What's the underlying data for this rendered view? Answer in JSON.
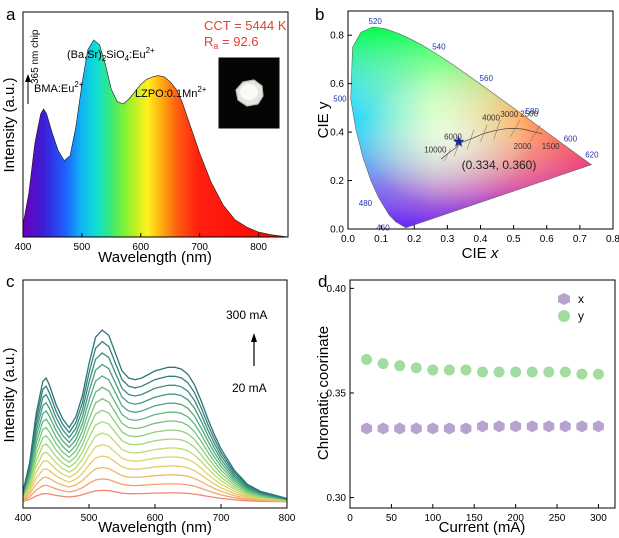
{
  "panels": {
    "a": {
      "letter": "a",
      "chart_data": {
        "type": "line",
        "title": "",
        "xlabel": "Wavelength (nm)",
        "ylabel": "Intensity (a.u.)",
        "xlim": [
          400,
          850
        ],
        "x_ticks": [
          "400",
          "500",
          "600",
          "700",
          "800"
        ],
        "series": [
          {
            "name": "Emission spectrum",
            "x": [
              400,
              410,
              420,
              430,
              435,
              440,
              450,
              460,
              470,
              480,
              490,
              500,
              510,
              520,
              530,
              540,
              550,
              560,
              570,
              580,
              590,
              600,
              610,
              620,
              630,
              640,
              650,
              660,
              670,
              680,
              690,
              700,
              720,
              740,
              760,
              780,
              800,
              820,
              850
            ],
            "values": [
              0.05,
              0.18,
              0.38,
              0.5,
              0.52,
              0.5,
              0.42,
              0.35,
              0.31,
              0.33,
              0.45,
              0.62,
              0.76,
              0.8,
              0.78,
              0.7,
              0.6,
              0.55,
              0.54,
              0.56,
              0.59,
              0.62,
              0.64,
              0.65,
              0.655,
              0.65,
              0.63,
              0.6,
              0.55,
              0.48,
              0.41,
              0.34,
              0.22,
              0.13,
              0.07,
              0.04,
              0.02,
              0.01,
              0.0
            ]
          }
        ],
        "annotations": {
          "chip": "365 nm chip",
          "bma": "BMA:Eu",
          "bma_sup": "2+",
          "basr_pre": "(Ba,Sr)",
          "basr_sub": "2",
          "basr_post": "SiO",
          "basr_sub2": "4",
          "basr_eu": ":Eu",
          "basr_sup": "2+",
          "lzpo": "LZPO:0.1Mn",
          "lzpo_sup": "2+",
          "cct": "CCT = 5444 K",
          "ra_r": "R",
          "ra_sub": "a",
          "ra_val": " = 92.6"
        }
      }
    },
    "b": {
      "letter": "b",
      "chart_data": {
        "type": "scatter",
        "title": "",
        "xlabel_pre": "CIE ",
        "xlabel_var": "x",
        "ylabel": "CIE y",
        "xlim": [
          0.0,
          0.8
        ],
        "ylim": [
          0.0,
          0.9
        ],
        "x_ticks": [
          "0.0",
          "0.1",
          "0.2",
          "0.3",
          "0.4",
          "0.5",
          "0.6",
          "0.7",
          "0.8"
        ],
        "y_ticks": [
          "0.0",
          "0.2",
          "0.4",
          "0.6",
          "0.8"
        ],
        "series": [
          {
            "name": "LED",
            "x": [
              0.334
            ],
            "values": [
              0.36
            ]
          }
        ],
        "point_label": "(0.334, 0.360)",
        "wavelength_labels": [
          {
            "text": "520",
            "x": 0.074,
            "y": 0.834
          },
          {
            "text": "540",
            "x": 0.23,
            "y": 0.754
          },
          {
            "text": "560",
            "x": 0.373,
            "y": 0.624
          },
          {
            "text": "580",
            "x": 0.512,
            "y": 0.487
          },
          {
            "text": "600",
            "x": 0.627,
            "y": 0.373
          },
          {
            "text": "620",
            "x": 0.692,
            "y": 0.308
          },
          {
            "text": "500",
            "x": 0.008,
            "y": 0.538
          },
          {
            "text": "480",
            "x": 0.091,
            "y": 0.133
          },
          {
            "text": "460",
            "x": 0.144,
            "y": 0.03
          }
        ],
        "cct_labels": [
          "10000",
          "6000",
          "4000",
          "3000",
          "2500",
          "2000",
          "1500"
        ],
        "gamut_locus": [
          [
            0.1741,
            0.005
          ],
          [
            0.144,
            0.0297
          ],
          [
            0.1241,
            0.0578
          ],
          [
            0.0913,
            0.1327
          ],
          [
            0.0687,
            0.2007
          ],
          [
            0.0454,
            0.295
          ],
          [
            0.0235,
            0.4127
          ],
          [
            0.0082,
            0.5384
          ],
          [
            0.0139,
            0.7502
          ],
          [
            0.0389,
            0.812
          ],
          [
            0.0743,
            0.8338
          ],
          [
            0.1142,
            0.8262
          ],
          [
            0.1547,
            0.8059
          ],
          [
            0.1929,
            0.7816
          ],
          [
            0.2296,
            0.7543
          ],
          [
            0.2658,
            0.7243
          ],
          [
            0.3016,
            0.6923
          ],
          [
            0.3373,
            0.6589
          ],
          [
            0.3731,
            0.6245
          ],
          [
            0.4087,
            0.5896
          ],
          [
            0.4441,
            0.5547
          ],
          [
            0.4788,
            0.5202
          ],
          [
            0.5125,
            0.4866
          ],
          [
            0.5448,
            0.4544
          ],
          [
            0.5752,
            0.4242
          ],
          [
            0.6029,
            0.3965
          ],
          [
            0.627,
            0.3725
          ],
          [
            0.6482,
            0.3514
          ],
          [
            0.6658,
            0.334
          ],
          [
            0.6801,
            0.3197
          ],
          [
            0.7347,
            0.2653
          ]
        ],
        "planckian_locus": [
          [
            0.281,
            0.288
          ],
          [
            0.3,
            0.31
          ],
          [
            0.322,
            0.332
          ],
          [
            0.346,
            0.359
          ],
          [
            0.38,
            0.377
          ],
          [
            0.409,
            0.394
          ],
          [
            0.437,
            0.404
          ],
          [
            0.459,
            0.41
          ],
          [
            0.477,
            0.414
          ],
          [
            0.505,
            0.415
          ],
          [
            0.527,
            0.413
          ],
          [
            0.586,
            0.393
          ]
        ]
      }
    },
    "c": {
      "letter": "c",
      "chart_data": {
        "type": "line",
        "title": "",
        "xlabel": "Wavelength (nm)",
        "ylabel": "Intensity (a.u.)",
        "xlim": [
          400,
          800
        ],
        "x_ticks": [
          "400",
          "500",
          "600",
          "700",
          "800"
        ],
        "current_high": "300 mA",
        "current_low": "20 mA",
        "currents_mA": [
          20,
          40,
          60,
          80,
          100,
          120,
          140,
          160,
          180,
          200,
          220,
          240,
          260,
          280,
          300
        ],
        "curve_colors": [
          "#f08872",
          "#f3a06e",
          "#f2b56b",
          "#e8c86a",
          "#d6d46c",
          "#bfd970",
          "#a5d675",
          "#8dcf7a",
          "#77c47d",
          "#63b77f",
          "#52a980",
          "#449b80",
          "#3a8d7f",
          "#327f7c",
          "#2c7478"
        ],
        "base_shape_x": [
          400,
          410,
          420,
          430,
          435,
          440,
          450,
          460,
          470,
          480,
          490,
          500,
          510,
          520,
          530,
          540,
          550,
          560,
          570,
          580,
          590,
          600,
          610,
          620,
          630,
          640,
          650,
          660,
          670,
          680,
          690,
          700,
          720,
          740,
          760,
          780,
          800
        ],
        "base_shape_y": [
          0.06,
          0.22,
          0.5,
          0.68,
          0.7,
          0.66,
          0.55,
          0.47,
          0.42,
          0.48,
          0.6,
          0.78,
          0.93,
          0.97,
          0.94,
          0.84,
          0.74,
          0.7,
          0.69,
          0.7,
          0.72,
          0.74,
          0.75,
          0.76,
          0.76,
          0.75,
          0.72,
          0.66,
          0.57,
          0.47,
          0.38,
          0.3,
          0.18,
          0.1,
          0.06,
          0.04,
          0.02
        ]
      }
    },
    "d": {
      "letter": "d",
      "chart_data": {
        "type": "scatter",
        "title": "",
        "xlabel": "Current (mA)",
        "ylabel": "Chromatic coorinate",
        "xlim": [
          0,
          320
        ],
        "ylim": [
          0.3,
          0.4
        ],
        "x_ticks": [
          "0",
          "50",
          "100",
          "150",
          "200",
          "250",
          "300"
        ],
        "y_ticks": [
          "0.30",
          "0.35",
          "0.40"
        ],
        "legend_position": "top-right",
        "series": [
          {
            "name": "x",
            "color": "#b8a2d0",
            "x": [
              20,
              40,
              60,
              80,
              100,
              120,
              140,
              160,
              180,
              200,
              220,
              240,
              260,
              280,
              300
            ],
            "values": [
              0.333,
              0.333,
              0.333,
              0.333,
              0.333,
              0.333,
              0.333,
              0.334,
              0.334,
              0.334,
              0.334,
              0.334,
              0.334,
              0.334,
              0.334
            ]
          },
          {
            "name": "y",
            "color": "#a4dca0",
            "x": [
              20,
              40,
              60,
              80,
              100,
              120,
              140,
              160,
              180,
              200,
              220,
              240,
              260,
              280,
              300
            ],
            "values": [
              0.366,
              0.364,
              0.363,
              0.362,
              0.361,
              0.361,
              0.361,
              0.36,
              0.36,
              0.36,
              0.36,
              0.36,
              0.36,
              0.359,
              0.359
            ]
          }
        ]
      }
    }
  }
}
